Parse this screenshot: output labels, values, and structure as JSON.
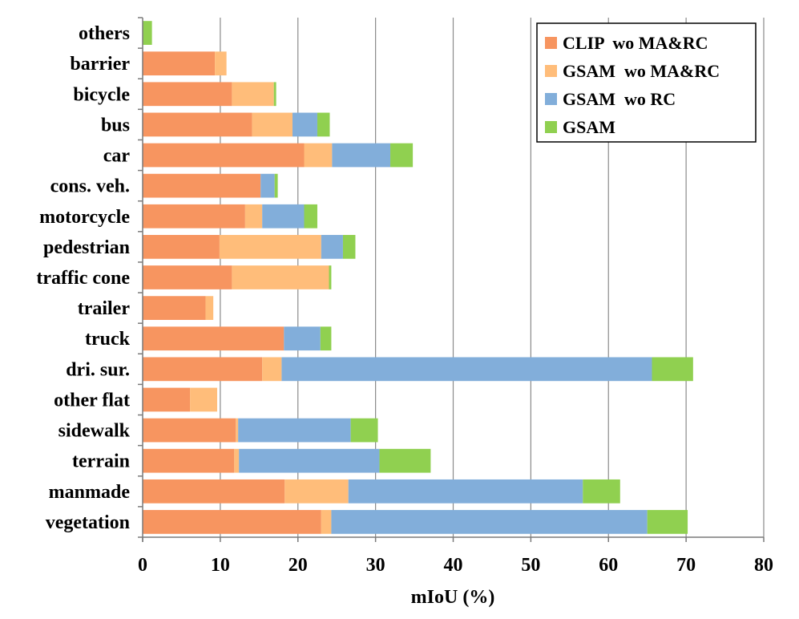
{
  "chart_data": {
    "type": "bar",
    "orientation": "horizontal",
    "stacked": true,
    "title": "",
    "xlabel": "mIoU (%)",
    "ylabel": "",
    "xlim": [
      0,
      80
    ],
    "xticks": [
      "0",
      "10",
      "20",
      "30",
      "40",
      "50",
      "60",
      "70",
      "80"
    ],
    "grid": true,
    "legend_position": "top-right",
    "categories": [
      "others",
      "barrier",
      "bicycle",
      "bus",
      "car",
      "cons. veh.",
      "motorcycle",
      "pedestrian",
      "traffic cone",
      "trailer",
      "truck",
      "dri. sur.",
      "other flat",
      "sidewalk",
      "terrain",
      "manmade",
      "vegetation"
    ],
    "series": [
      {
        "name": "CLIP  wo MA&RC",
        "color": "#F79560",
        "values": [
          0,
          9.3,
          11.5,
          14.1,
          20.8,
          15.2,
          13.2,
          9.9,
          11.5,
          8.1,
          18.2,
          15.4,
          6.1,
          12.0,
          11.8,
          18.3,
          23.0
        ]
      },
      {
        "name": "GSAM  wo MA&RC",
        "color": "#FFBD7A",
        "values": [
          0,
          1.5,
          5.4,
          5.2,
          3.6,
          0,
          2.2,
          13.1,
          12.5,
          1.0,
          0,
          2.5,
          3.5,
          0.3,
          0.6,
          8.2,
          1.3
        ]
      },
      {
        "name": "GSAM  wo RC",
        "color": "#82AEDA",
        "values": [
          0,
          0,
          0,
          3.2,
          7.5,
          1.8,
          5.4,
          2.8,
          0,
          0,
          4.7,
          47.7,
          0,
          14.5,
          18.1,
          30.2,
          40.7
        ]
      },
      {
        "name": "GSAM",
        "color": "#90D050",
        "values": [
          1.2,
          0,
          0.3,
          1.6,
          2.9,
          0.4,
          1.7,
          1.6,
          0.3,
          0,
          1.4,
          5.3,
          0,
          3.5,
          6.6,
          4.8,
          5.2
        ]
      }
    ]
  }
}
